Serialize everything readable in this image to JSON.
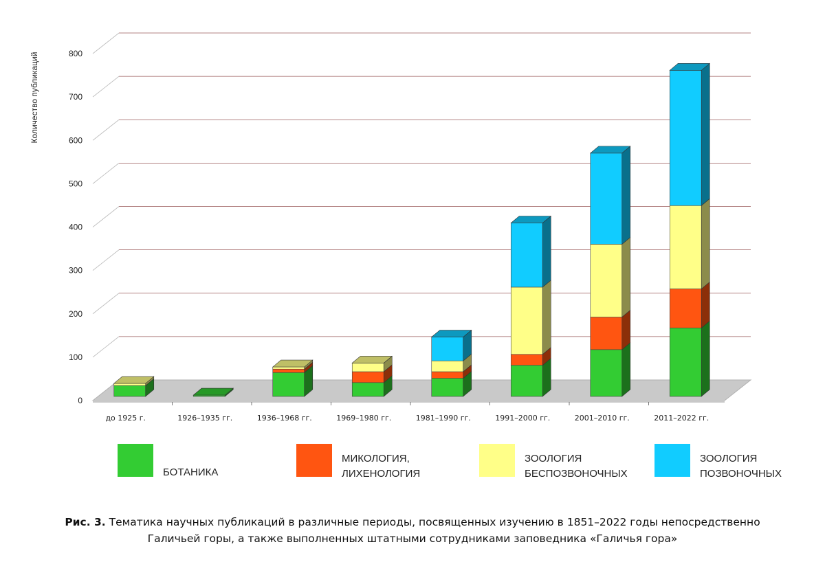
{
  "chart_data": {
    "type": "bar",
    "stacked": true,
    "style": "3d",
    "ylabel": "Количество публикаций",
    "ylim": [
      0,
      800
    ],
    "yticks": [
      "0",
      "100",
      "200",
      "300",
      "400",
      "500",
      "600",
      "700",
      "800"
    ],
    "categories": [
      "до 1925 г.",
      "1926–1935 гг.",
      "1936–1968 гг.",
      "1969–1980 гг.",
      "1981–1990 гг.",
      "1991–2000 гг.",
      "2001–2010 гг.",
      "2011–2022 гг."
    ],
    "series": [
      {
        "name": "БОТАНИКА",
        "values": [
          25,
          3,
          55,
          32,
          42,
          72,
          108,
          158
        ],
        "color": "#33cc33"
      },
      {
        "name": "МИКОЛОГИЯ, ЛИХЕНОЛОГИЯ",
        "values": [
          0,
          0,
          8,
          25,
          15,
          25,
          75,
          90
        ],
        "color": "#ff5511"
      },
      {
        "name": "ЗООЛОГИЯ БЕСПОЗВОНОЧНЫХ",
        "values": [
          5,
          0,
          5,
          20,
          25,
          155,
          168,
          192
        ],
        "color": "#ffff88"
      },
      {
        "name": "ЗООЛОГИЯ ПОЗВОНОЧНЫХ",
        "values": [
          0,
          0,
          0,
          0,
          55,
          148,
          210,
          312
        ],
        "color": "#11ccff"
      }
    ],
    "legend": [
      {
        "lines": [
          "БОТАНИКА"
        ]
      },
      {
        "lines": [
          "МИКОЛОГИЯ,",
          "ЛИХЕНОЛОГИЯ"
        ]
      },
      {
        "lines": [
          "ЗООЛОГИЯ",
          "БЕСПОЗВОНОЧНЫХ"
        ]
      },
      {
        "lines": [
          "ЗООЛОГИЯ",
          "ПОЗВОНОЧНЫХ"
        ]
      }
    ],
    "legend_position": "bottom",
    "grid": true
  },
  "caption": {
    "label": "Рис. 3.",
    "text": " Тематика научных публикаций в различные периоды, посвященных изучению в 1851–2022 годы непосредственно Галичьей горы, а также выполненных штатными сотрудниками заповедника «Галичья гора»"
  }
}
